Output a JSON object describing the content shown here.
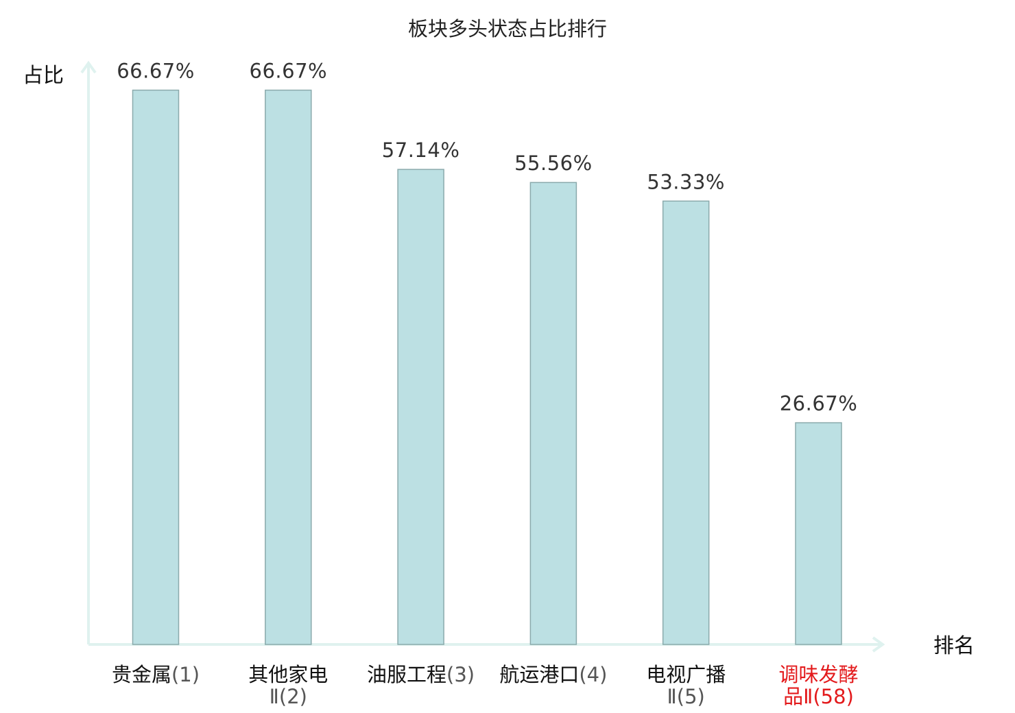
{
  "chart_data": {
    "type": "bar",
    "title": "板块多头状态占比排行",
    "ylabel": "占比",
    "xlabel": "排名",
    "ylim": [
      0,
      70
    ],
    "grid": false,
    "categories": [
      {
        "lines": [
          "贵金属(1)"
        ]
      },
      {
        "lines": [
          "其他家电",
          "Ⅱ(2)"
        ]
      },
      {
        "lines": [
          "油服工程(3)"
        ]
      },
      {
        "lines": [
          "航运港口(4)"
        ]
      },
      {
        "lines": [
          "电视广播",
          "Ⅱ(5)"
        ]
      },
      {
        "lines": [
          "调味发酵",
          "品Ⅱ(58)"
        ],
        "highlight": true
      }
    ],
    "values": [
      66.67,
      66.67,
      57.14,
      55.56,
      53.33,
      26.67
    ],
    "value_labels": [
      "66.67%",
      "66.67%",
      "57.14%",
      "55.56%",
      "53.33%",
      "26.67%"
    ],
    "colors": {
      "bar_fill": "#bce0e3",
      "bar_stroke": "#8aaaac",
      "axis": "#dff2ef",
      "highlight": "#e31a1c"
    }
  }
}
